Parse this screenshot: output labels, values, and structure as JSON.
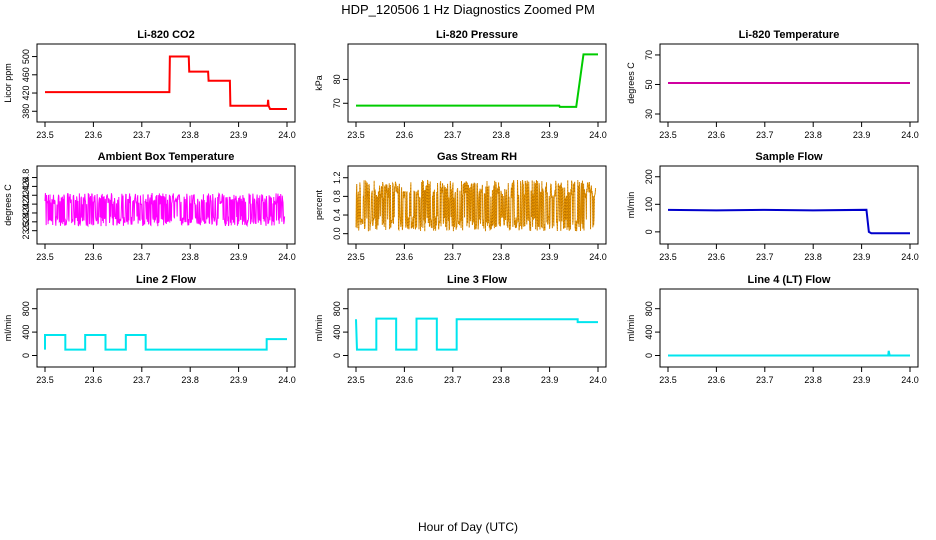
{
  "title": "HDP_120506  1 Hz Diagnostics Zoomed PM",
  "xlabel": "Hour of Day (UTC)",
  "chart_data": [
    {
      "type": "line",
      "title": "Li-820 CO2",
      "ylabel": "Licor ppm",
      "color": "#ff0000",
      "x_ticks": [
        "23.5",
        "23.6",
        "23.7",
        "23.8",
        "23.9",
        "24.0"
      ],
      "xlim": [
        23.5,
        24.0
      ],
      "y_ticks": [
        "380",
        "420",
        "460",
        "500"
      ],
      "ylim": [
        374,
        510
      ],
      "x": [
        23.5,
        23.757,
        23.758,
        23.797,
        23.798,
        23.837,
        23.838,
        23.882,
        23.883,
        23.96,
        23.961,
        23.962,
        23.965,
        24.0
      ],
      "y": [
        422,
        422,
        500,
        500,
        467,
        467,
        447,
        447,
        392,
        392,
        405,
        392,
        385,
        385
      ]
    },
    {
      "type": "line",
      "title": "Li-820 Pressure",
      "ylabel": "kPa",
      "color": "#00cc00",
      "x_ticks": [
        "23.5",
        "23.6",
        "23.7",
        "23.8",
        "23.9",
        "24.0"
      ],
      "xlim": [
        23.5,
        24.0
      ],
      "y_ticks": [
        "70",
        "80"
      ],
      "ylim": [
        65.5,
        91.5
      ],
      "x": [
        23.5,
        23.92,
        23.921,
        23.955,
        23.97,
        23.975,
        24.0
      ],
      "y": [
        69,
        69,
        68.5,
        68.5,
        90.5,
        90.5,
        90.5
      ]
    },
    {
      "type": "line",
      "title": "Li-820 Temperature",
      "ylabel": "degrees C",
      "color": "#d000a0",
      "x_ticks": [
        "23.5",
        "23.6",
        "23.7",
        "23.8",
        "23.9",
        "24.0"
      ],
      "xlim": [
        23.5,
        24.0
      ],
      "y_ticks": [
        "30",
        "50",
        "70"
      ],
      "ylim": [
        30,
        72
      ],
      "x": [
        23.5,
        24.0
      ],
      "y": [
        51,
        51
      ]
    },
    {
      "type": "line",
      "title": "Ambient Box Temperature",
      "ylabel": "degrees C",
      "color": "#ff00ff",
      "noise": "band",
      "x_ticks": [
        "23.5",
        "23.6",
        "23.7",
        "23.8",
        "23.9",
        "24.0"
      ],
      "xlim": [
        23.5,
        24.0
      ],
      "y_ticks": [
        "23.6",
        "23.8",
        "24.0",
        "24.2",
        "24.4",
        "24.6",
        "24.8"
      ],
      "ylim": [
        23.48,
        24.88
      ],
      "x": [
        23.5,
        23.995
      ],
      "y": [
        24.05,
        24.05
      ],
      "band": [
        23.7,
        24.45
      ]
    },
    {
      "type": "line",
      "title": "Gas Stream RH",
      "ylabel": "percent",
      "color": "#e69500",
      "noise": "band",
      "x_ticks": [
        "23.5",
        "23.6",
        "23.7",
        "23.8",
        "23.9",
        "24.0"
      ],
      "xlim": [
        23.5,
        24.0
      ],
      "y_ticks": [
        "0.0",
        "0.4",
        "0.8",
        "1.2"
      ],
      "ylim": [
        -0.05,
        1.28
      ],
      "x": [
        23.5,
        23.995
      ],
      "y": [
        0.55,
        0.55
      ],
      "band": [
        0.05,
        1.15
      ]
    },
    {
      "type": "line",
      "title": "Sample Flow",
      "ylabel": "ml/min",
      "color": "#0000cc",
      "x_ticks": [
        "23.5",
        "23.6",
        "23.7",
        "23.8",
        "23.9",
        "24.0"
      ],
      "xlim": [
        23.5,
        24.0
      ],
      "y_ticks": [
        "0",
        "100",
        "200"
      ],
      "ylim": [
        -15,
        210
      ],
      "x": [
        23.5,
        23.6,
        23.7,
        23.8,
        23.91,
        23.915,
        23.92,
        23.94,
        24.0
      ],
      "y": [
        80,
        78,
        80,
        78,
        80,
        0,
        -5,
        -5,
        -5
      ]
    },
    {
      "type": "line",
      "title": "Line 2 Flow",
      "ylabel": "ml/min",
      "color": "#00e5ee",
      "x_ticks": [
        "23.5",
        "23.6",
        "23.7",
        "23.8",
        "23.9",
        "24.0"
      ],
      "xlim": [
        23.5,
        24.0
      ],
      "y_ticks": [
        "0",
        "400",
        "800"
      ],
      "ylim": [
        -60,
        1000
      ],
      "x": [
        23.5,
        23.5,
        23.542,
        23.542,
        23.583,
        23.583,
        23.625,
        23.625,
        23.667,
        23.667,
        23.708,
        23.708,
        23.75,
        23.75,
        23.958,
        23.958,
        24.0
      ],
      "y": [
        100,
        350,
        350,
        100,
        100,
        350,
        350,
        100,
        100,
        350,
        350,
        100,
        100,
        100,
        100,
        280,
        280
      ]
    },
    {
      "type": "line",
      "title": "Line 3 Flow",
      "ylabel": "ml/min",
      "color": "#00e5ee",
      "x_ticks": [
        "23.5",
        "23.6",
        "23.7",
        "23.8",
        "23.9",
        "24.0"
      ],
      "xlim": [
        23.5,
        24.0
      ],
      "y_ticks": [
        "0",
        "400",
        "800"
      ],
      "ylim": [
        -60,
        1000
      ],
      "x": [
        23.5,
        23.5,
        23.502,
        23.502,
        23.542,
        23.542,
        23.583,
        23.583,
        23.625,
        23.625,
        23.667,
        23.667,
        23.708,
        23.708,
        23.958,
        23.958,
        24.0
      ],
      "y": [
        620,
        620,
        100,
        100,
        100,
        630,
        630,
        100,
        100,
        630,
        630,
        100,
        100,
        620,
        620,
        570,
        570
      ]
    },
    {
      "type": "line",
      "title": "Line 4 (LT) Flow",
      "ylabel": "ml/min",
      "color": "#00e5ee",
      "x_ticks": [
        "23.5",
        "23.6",
        "23.7",
        "23.8",
        "23.9",
        "24.0"
      ],
      "xlim": [
        23.5,
        24.0
      ],
      "y_ticks": [
        "0",
        "400",
        "800"
      ],
      "ylim": [
        -60,
        1000
      ],
      "x": [
        23.5,
        23.955,
        23.956,
        23.958,
        23.96,
        24.0
      ],
      "y": [
        0,
        0,
        80,
        0,
        0,
        0
      ]
    }
  ]
}
